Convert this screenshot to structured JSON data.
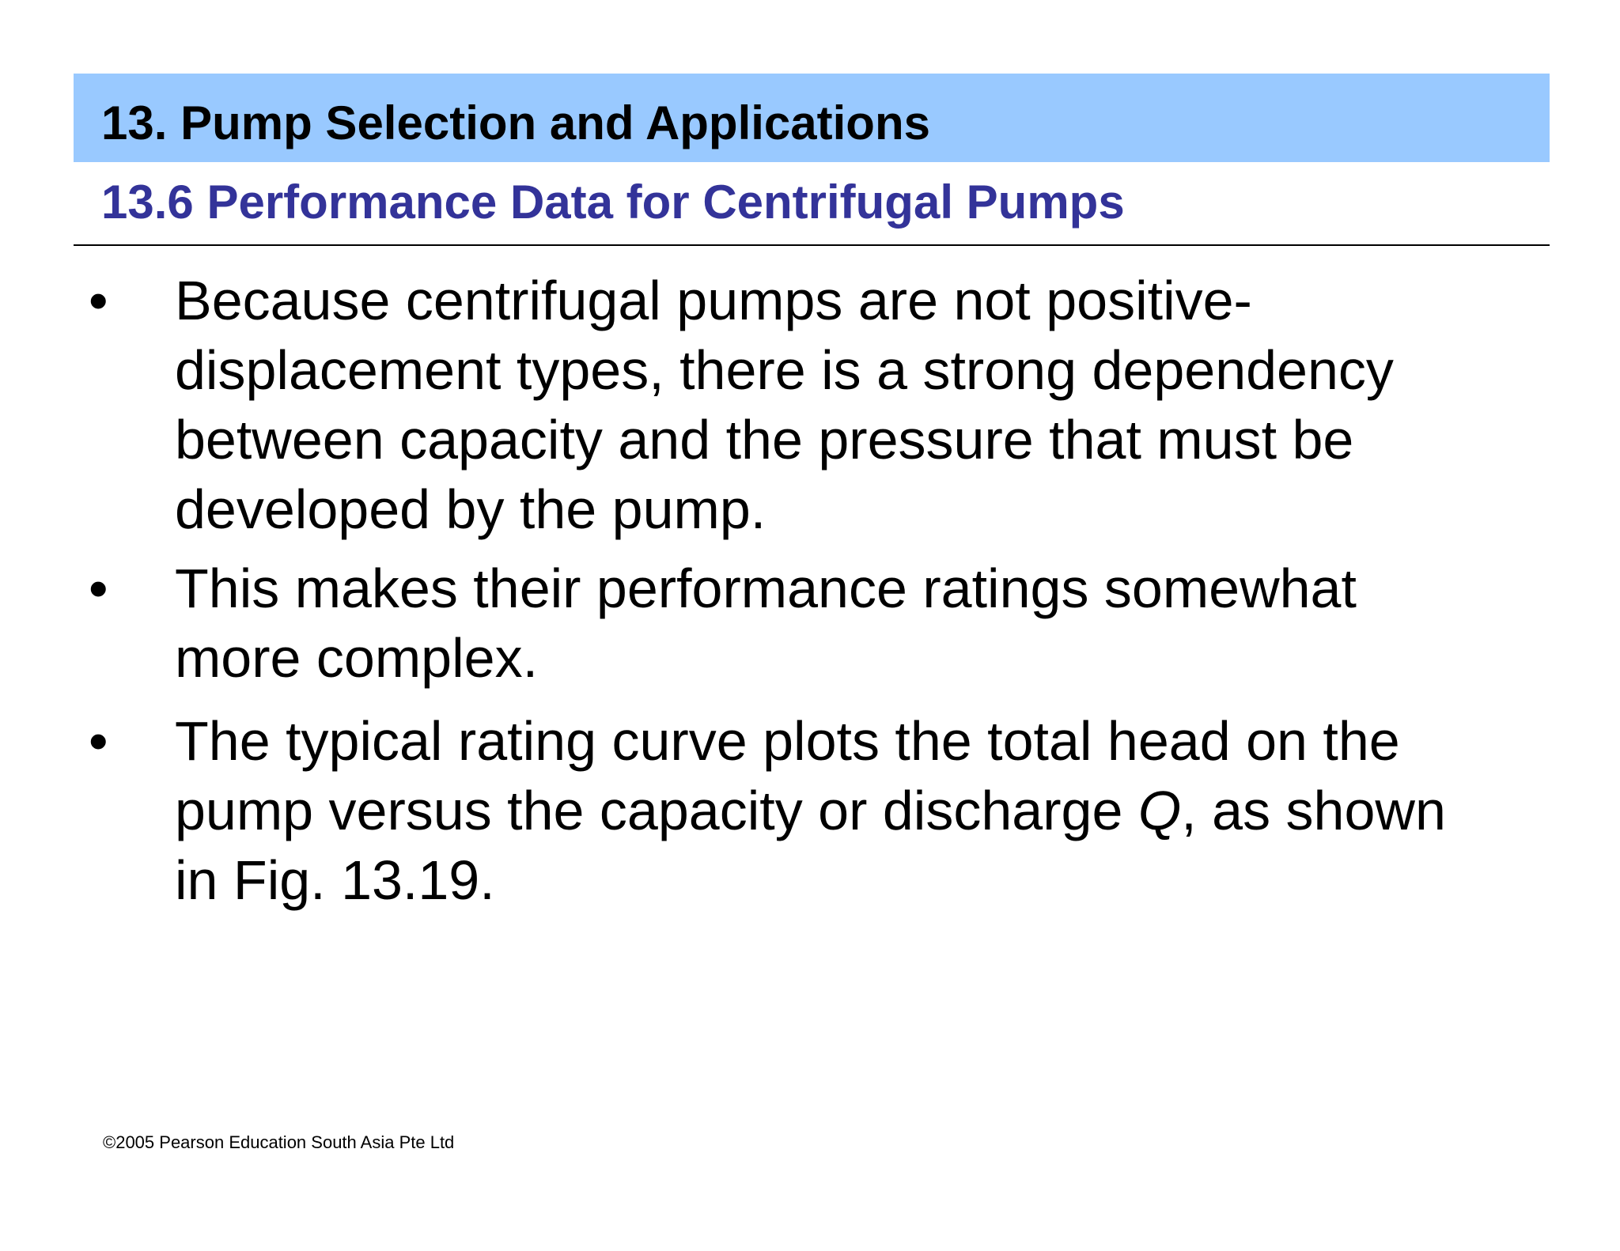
{
  "header": {
    "chapter_title": "13. Pump Selection and Applications",
    "section_title": "13.6 Performance Data for Centrifugal Pumps"
  },
  "bullets": [
    {
      "lines": [
        "Because centrifugal pumps are not positive-",
        "displacement types, there is a strong dependency",
        "between capacity and the pressure that must be",
        "developed by the pump."
      ]
    },
    {
      "lines": [
        "This makes their performance ratings somewhat",
        "more complex."
      ]
    },
    {
      "line1": "The typical rating curve plots the total head on the",
      "line2_before": "pump versus the capacity or discharge ",
      "line2_italic": "Q",
      "line2_after": ", as shown",
      "line3": "in Fig. 13.19."
    }
  ],
  "bullet_symbol": "•",
  "footer": {
    "copyright": "©2005 Pearson Education South Asia Pte Ltd"
  },
  "colors": {
    "title_bar": "#99c9ff",
    "section_title": "#333399"
  }
}
